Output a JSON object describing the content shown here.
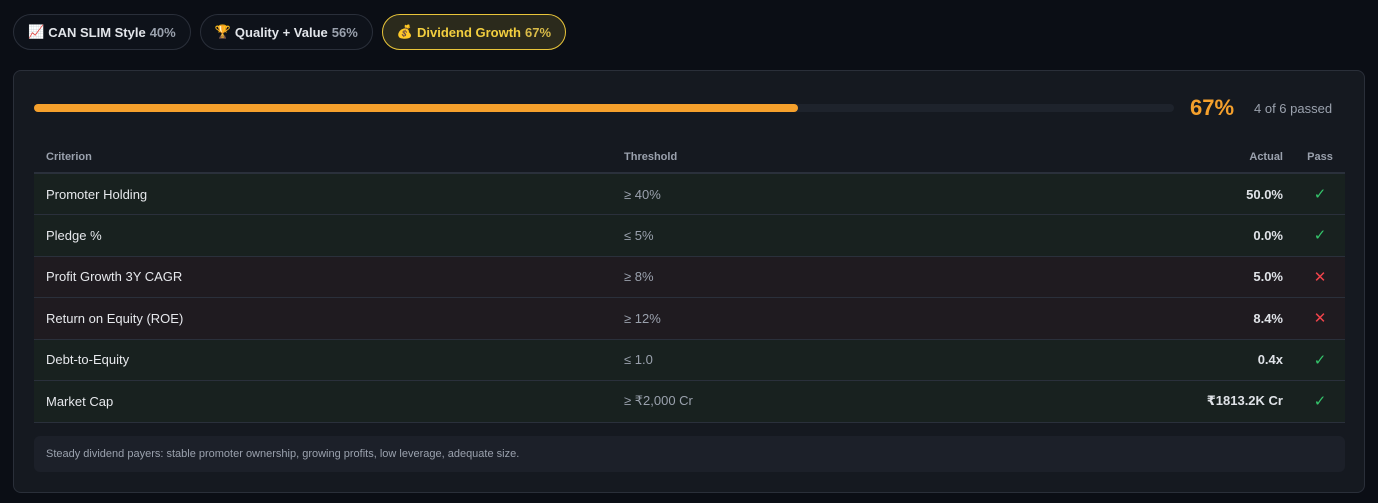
{
  "tabs": [
    {
      "icon": "📈",
      "label": "CAN SLIM Style",
      "pct": "40%",
      "active": false
    },
    {
      "icon": "🏆",
      "label": "Quality + Value",
      "pct": "56%",
      "active": false
    },
    {
      "icon": "💰",
      "label": "Dividend Growth",
      "pct": "67%",
      "active": true
    }
  ],
  "progress": {
    "percent": "67%",
    "value": 67,
    "summary": "4 of 6 passed",
    "color": "#f5a02c"
  },
  "table": {
    "headers": {
      "criterion": "Criterion",
      "threshold": "Threshold",
      "actual": "Actual",
      "pass": "Pass"
    },
    "rows": [
      {
        "criterion": "Promoter Holding",
        "threshold": "≥ 40%",
        "actual": "50.0%",
        "pass": "✓",
        "passed": true
      },
      {
        "criterion": "Pledge %",
        "threshold": "≤ 5%",
        "actual": "0.0%",
        "pass": "✓",
        "passed": true
      },
      {
        "criterion": "Profit Growth 3Y CAGR",
        "threshold": "≥ 8%",
        "actual": "5.0%",
        "pass": "✕",
        "passed": false
      },
      {
        "criterion": "Return on Equity (ROE)",
        "threshold": "≥ 12%",
        "actual": "8.4%",
        "pass": "✕",
        "passed": false
      },
      {
        "criterion": "Debt-to-Equity",
        "threshold": "≤ 1.0",
        "actual": "0.4x",
        "pass": "✓",
        "passed": true
      },
      {
        "criterion": "Market Cap",
        "threshold": "≥ ₹2,000 Cr",
        "actual": "₹1813.2K Cr",
        "pass": "✓",
        "passed": true
      }
    ]
  },
  "note": "Steady dividend payers: stable promoter ownership, growing profits, low leverage, adequate size."
}
